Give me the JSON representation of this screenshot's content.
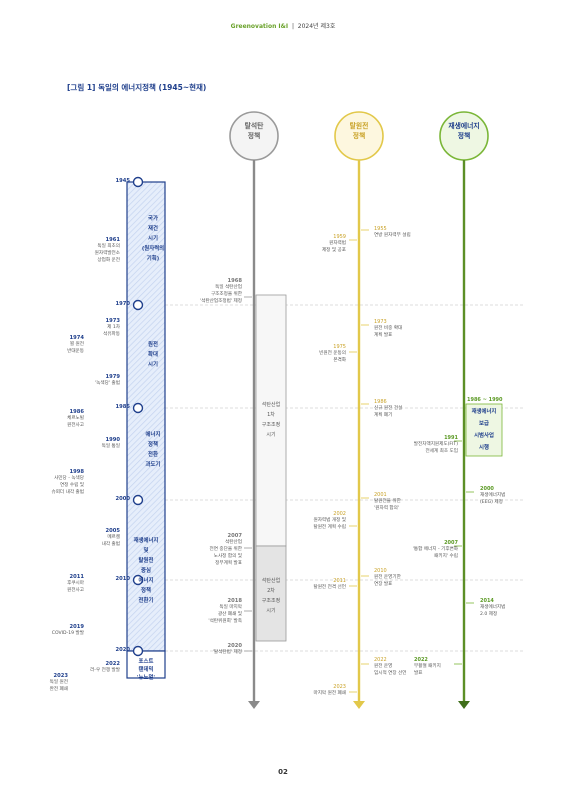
{
  "header": {
    "brand": "Greenovation I&I",
    "issue": "2024년 제3호"
  },
  "figure_title": "[그림 1] 독일의 에너지정책 (1945~현재)",
  "columns": {
    "coal": "탈석탄\n정책",
    "nuclear": "탈원전\n정책",
    "renewable": "재생에너지\n정책"
  },
  "timeline_years": [
    "1945",
    "1970",
    "1985",
    "2000",
    "2010",
    "2020"
  ],
  "periods": [
    "국가\n재건\n시기\n(원자력의\n기획)",
    "원전\n확대\n시기",
    "에너지\n정책\n전환\n과도기",
    "재생에너지\n및\n탈원전\n중심\n에너지\n정책\n전환기",
    "포스트\n탠데믹\n'뉴노멀'"
  ],
  "left_events": [
    {
      "year": "1961",
      "text": "독일 최초의\n원자력발전소\n상업화 운전"
    },
    {
      "year": "1973",
      "text": "제 1차\n석유파동"
    },
    {
      "year": "1974",
      "text": "뵐 원전\n반대운동"
    },
    {
      "year": "1979",
      "text": "'녹색당' 출범"
    },
    {
      "year": "1986",
      "text": "체르노빌\n원전사고"
    },
    {
      "year": "1990",
      "text": "독일 통일"
    },
    {
      "year": "1998",
      "text": "사민당 - 녹색당\n연정 수립 및\n슈뢰더 내각 출범"
    },
    {
      "year": "2005",
      "text": "메르켈\n내각 출범"
    },
    {
      "year": "2011",
      "text": "후쿠시마\n원전사고"
    },
    {
      "year": "2019",
      "text": "COVID-19 발발"
    },
    {
      "year": "2022",
      "text": "러-우 전쟁 발발"
    },
    {
      "year": "2023",
      "text": "독일 원전\n완전 폐쇄"
    }
  ],
  "coal_events": [
    {
      "year": "1968",
      "text": "독일 석탄산업\n구조조정을 위한\n'석탄산업조정법' 제정"
    },
    {
      "year": "2007",
      "text": "석탄산업\n전면 중단을 위한\n노사정 합의 및\n정부계획 발표"
    },
    {
      "year": "2018",
      "text": "독일 마지막\n광산 폐쇄 및\n'석탄위원회' 발족"
    },
    {
      "year": "2020",
      "text": "'탈석탄법' 제정"
    }
  ],
  "coal_boxes": [
    "석탄산업\n1차\n구조조정\n시기",
    "석탄산업\n2차\n구조조정\n시기"
  ],
  "nuclear_events_left": [
    {
      "year": "1959",
      "text": "원자력법\n제정 및 공포"
    },
    {
      "year": "1975",
      "text": "빈원전 운동의\n본격화"
    },
    {
      "year": "2002",
      "text": "원자력법 개정 및\n탈원전 계획 수립"
    },
    {
      "year": "2011",
      "text": "탈원전 전격 선언"
    },
    {
      "year": "2023",
      "text": "마지막 원전 폐쇄"
    }
  ],
  "nuclear_events_right": [
    {
      "year": "1955",
      "text": "연방 원자력부 설립"
    },
    {
      "year": "1973",
      "text": "원전 비중 확대\n계획 발표"
    },
    {
      "year": "1986",
      "text": "신규 원전 건설\n계획 폐기"
    },
    {
      "year": "2001",
      "text": "탈원전을 위한\n'원자력 합의'"
    },
    {
      "year": "2010",
      "text": "원전 운영기한\n연장 발표"
    },
    {
      "year": "2022",
      "text": "원전 운영\n임시적 연장 선언"
    }
  ],
  "renewable_events_left": [
    {
      "year": "1991",
      "text": "발전차액지원제도(FIT)\n전세계 최초 도입"
    },
    {
      "year": "2007",
      "text": "'통합 에너지 - 기후변화\n패키지' 수립"
    },
    {
      "year": "2022",
      "text": "부활절 패키지\n발표"
    }
  ],
  "renewable_events_right": [
    {
      "year": "1986 ~ 1990",
      "text": ""
    },
    {
      "year": "2000",
      "text": "재생에너지법\n(EEG) 제정"
    },
    {
      "year": "2014",
      "text": "재생에너지법\n2.0 제정"
    }
  ],
  "renewable_box": "재생에너지\n보급\n시범사업\n시행",
  "page_number": "02",
  "colors": {
    "navy": "#1f3f8c",
    "coal_gray": "#8a8a8a",
    "nuclear_yellow": "#e2c84a",
    "renewable_green": "#7ab637"
  }
}
